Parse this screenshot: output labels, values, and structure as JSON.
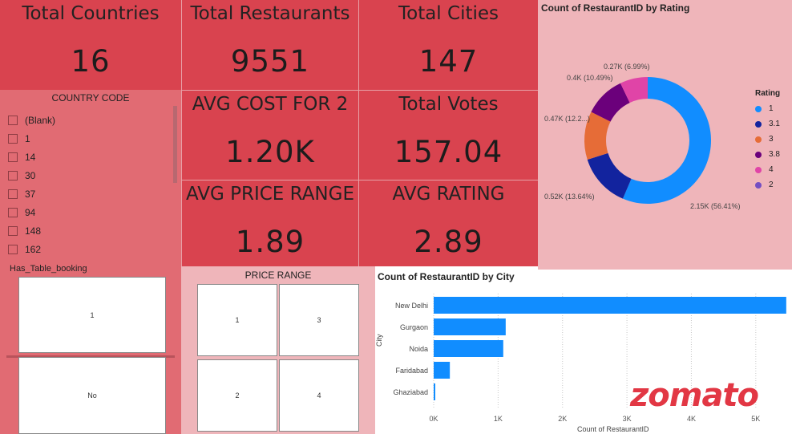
{
  "kpis": {
    "total_countries": {
      "label": "Total Countries",
      "value": "16"
    },
    "total_restaurants": {
      "label": "Total Restaurants",
      "value": "9551"
    },
    "total_cities": {
      "label": "Total Cities",
      "value": "147"
    },
    "avg_cost": {
      "label": "AVG COST FOR 2",
      "value": "1.20K"
    },
    "total_votes": {
      "label": "Total Votes",
      "value": "157.04"
    },
    "avg_price_range": {
      "label": "AVG PRICE RANGE",
      "value": "1.89"
    },
    "avg_rating": {
      "label": "AVG RATING",
      "value": "2.89"
    }
  },
  "country_slicer": {
    "title": "COUNTRY CODE",
    "items": [
      "(Blank)",
      "1",
      "14",
      "30",
      "37",
      "94",
      "148",
      "162"
    ]
  },
  "table_booking": {
    "title": "Has_Table_booking",
    "tiles": [
      "1",
      "No"
    ]
  },
  "price_range": {
    "title": "PRICE RANGE",
    "tiles": [
      "1",
      "3",
      "2",
      "4"
    ]
  },
  "logo_text": "zomato",
  "colors": {
    "card_red": "#d9434f",
    "slicer_red": "#e16b73",
    "panel_pink": "#efb5ba",
    "bar_blue": "#118dff",
    "logo_red": "#e23744"
  },
  "chart_data": [
    {
      "type": "pie",
      "title": "Count of RestaurantID by Rating",
      "legend_title": "Rating",
      "legend_position": "right",
      "categories": [
        "1",
        "3.1",
        "3",
        "3.8",
        "4",
        "2"
      ],
      "values": [
        2150,
        520,
        470,
        400,
        270,
        0
      ],
      "colors": [
        "#118dff",
        "#12239e",
        "#e66c37",
        "#6b007b",
        "#e044a7",
        "#744ec2"
      ],
      "labels": [
        "2.15K (56.41%)",
        "0.52K (13.64%)",
        "0.47K (12.2...)",
        "0.4K (10.49%)",
        "0.27K (6.99%)",
        ""
      ]
    },
    {
      "type": "bar",
      "orientation": "horizontal",
      "title": "Count of RestaurantID by City",
      "xlabel": "Count of RestaurantID",
      "ylabel": "City",
      "categories": [
        "New Delhi",
        "Gurgaon",
        "Noida",
        "Faridabad",
        "Ghaziabad"
      ],
      "values": [
        5473,
        1118,
        1080,
        251,
        25
      ],
      "xlim": [
        0,
        5500
      ],
      "xticks": [
        "0K",
        "1K",
        "2K",
        "3K",
        "4K",
        "5K"
      ],
      "grid": true
    }
  ]
}
